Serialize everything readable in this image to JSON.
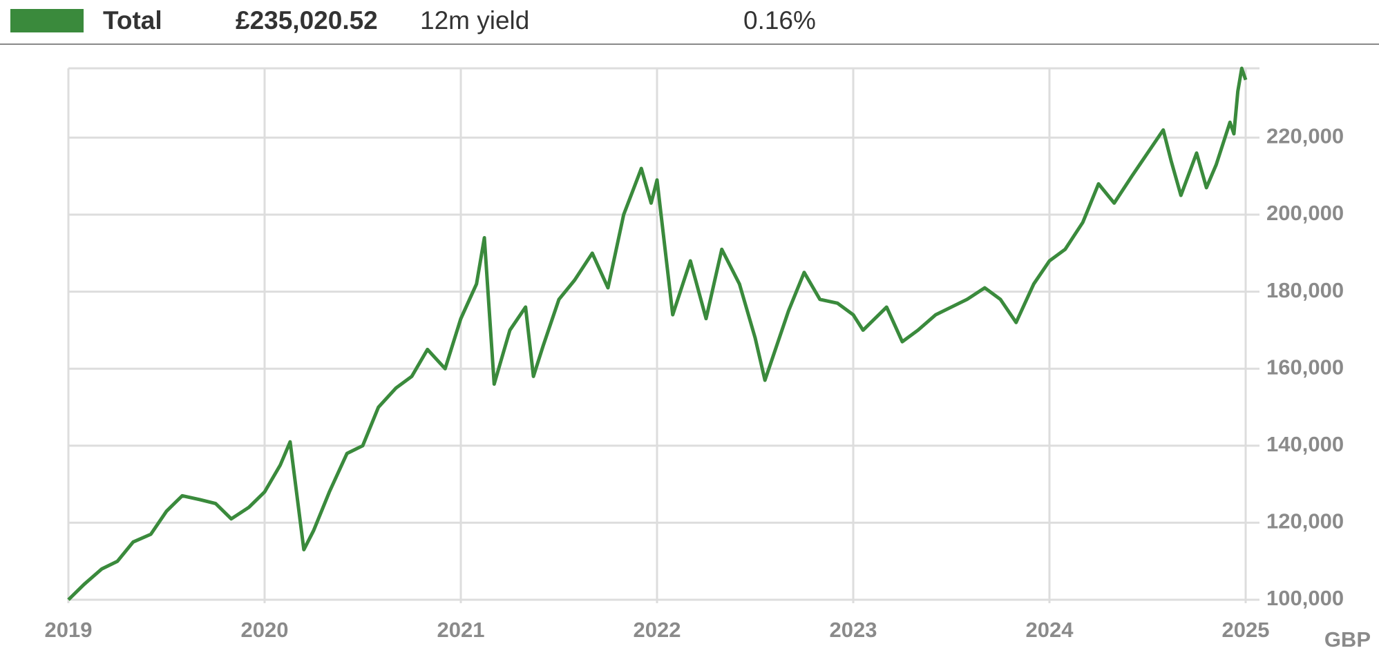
{
  "chart_data": {
    "type": "line",
    "total_value": "£235,020.52",
    "yield_label": "12m yield",
    "yield_value": "0.16%",
    "ylabel": "GBP",
    "x": [
      2019.0,
      2019.08,
      2019.17,
      2019.25,
      2019.33,
      2019.42,
      2019.5,
      2019.58,
      2019.67,
      2019.75,
      2019.83,
      2019.92,
      2020.0,
      2020.08,
      2020.13,
      2020.2,
      2020.25,
      2020.33,
      2020.42,
      2020.5,
      2020.58,
      2020.67,
      2020.75,
      2020.83,
      2020.92,
      2021.0,
      2021.08,
      2021.12,
      2021.17,
      2021.25,
      2021.33,
      2021.37,
      2021.42,
      2021.5,
      2021.58,
      2021.67,
      2021.75,
      2021.83,
      2021.92,
      2021.97,
      2022.0,
      2022.08,
      2022.17,
      2022.25,
      2022.33,
      2022.42,
      2022.5,
      2022.55,
      2022.67,
      2022.75,
      2022.83,
      2022.92,
      2023.0,
      2023.05,
      2023.17,
      2023.25,
      2023.33,
      2023.42,
      2023.5,
      2023.58,
      2023.67,
      2023.75,
      2023.83,
      2023.92,
      2024.0,
      2024.08,
      2024.17,
      2024.25,
      2024.33,
      2024.42,
      2024.5,
      2024.58,
      2024.62,
      2024.67,
      2024.75,
      2024.8,
      2024.85,
      2024.92,
      2024.94,
      2024.96,
      2024.98,
      2025.0
    ],
    "series": [
      {
        "name": "Total",
        "color": "#3a8a3c",
        "values": [
          100000,
          104000,
          108000,
          110000,
          115000,
          117000,
          123000,
          127000,
          126000,
          125000,
          121000,
          124000,
          128000,
          135000,
          141000,
          113000,
          118000,
          128000,
          138000,
          140000,
          150000,
          155000,
          158000,
          165000,
          160000,
          173000,
          182000,
          194000,
          156000,
          170000,
          176000,
          158000,
          166000,
          178000,
          183000,
          190000,
          181000,
          200000,
          212000,
          203000,
          209000,
          174000,
          188000,
          173000,
          191000,
          182000,
          168000,
          157000,
          175000,
          185000,
          178000,
          177000,
          174000,
          170000,
          176000,
          167000,
          170000,
          174000,
          176000,
          178000,
          181000,
          178000,
          172000,
          182000,
          188000,
          191000,
          198000,
          208000,
          203000,
          210000,
          216000,
          222000,
          214000,
          205000,
          216000,
          207000,
          213000,
          224000,
          221000,
          232000,
          238000,
          235000
        ]
      }
    ],
    "xlim": [
      2019,
      2025
    ],
    "xticks": [
      2019,
      2020,
      2021,
      2022,
      2023,
      2024,
      2025
    ],
    "ylim": [
      100000,
      238000
    ],
    "yticks": [
      {
        "value": 100000,
        "label": "100,000"
      },
      {
        "value": 120000,
        "label": "120,000"
      },
      {
        "value": 140000,
        "label": "140,000"
      },
      {
        "value": 160000,
        "label": "160,000"
      },
      {
        "value": 180000,
        "label": "180,000"
      },
      {
        "value": 200000,
        "label": "200,000"
      },
      {
        "value": 220000,
        "label": "220,000"
      }
    ],
    "grid": true
  }
}
